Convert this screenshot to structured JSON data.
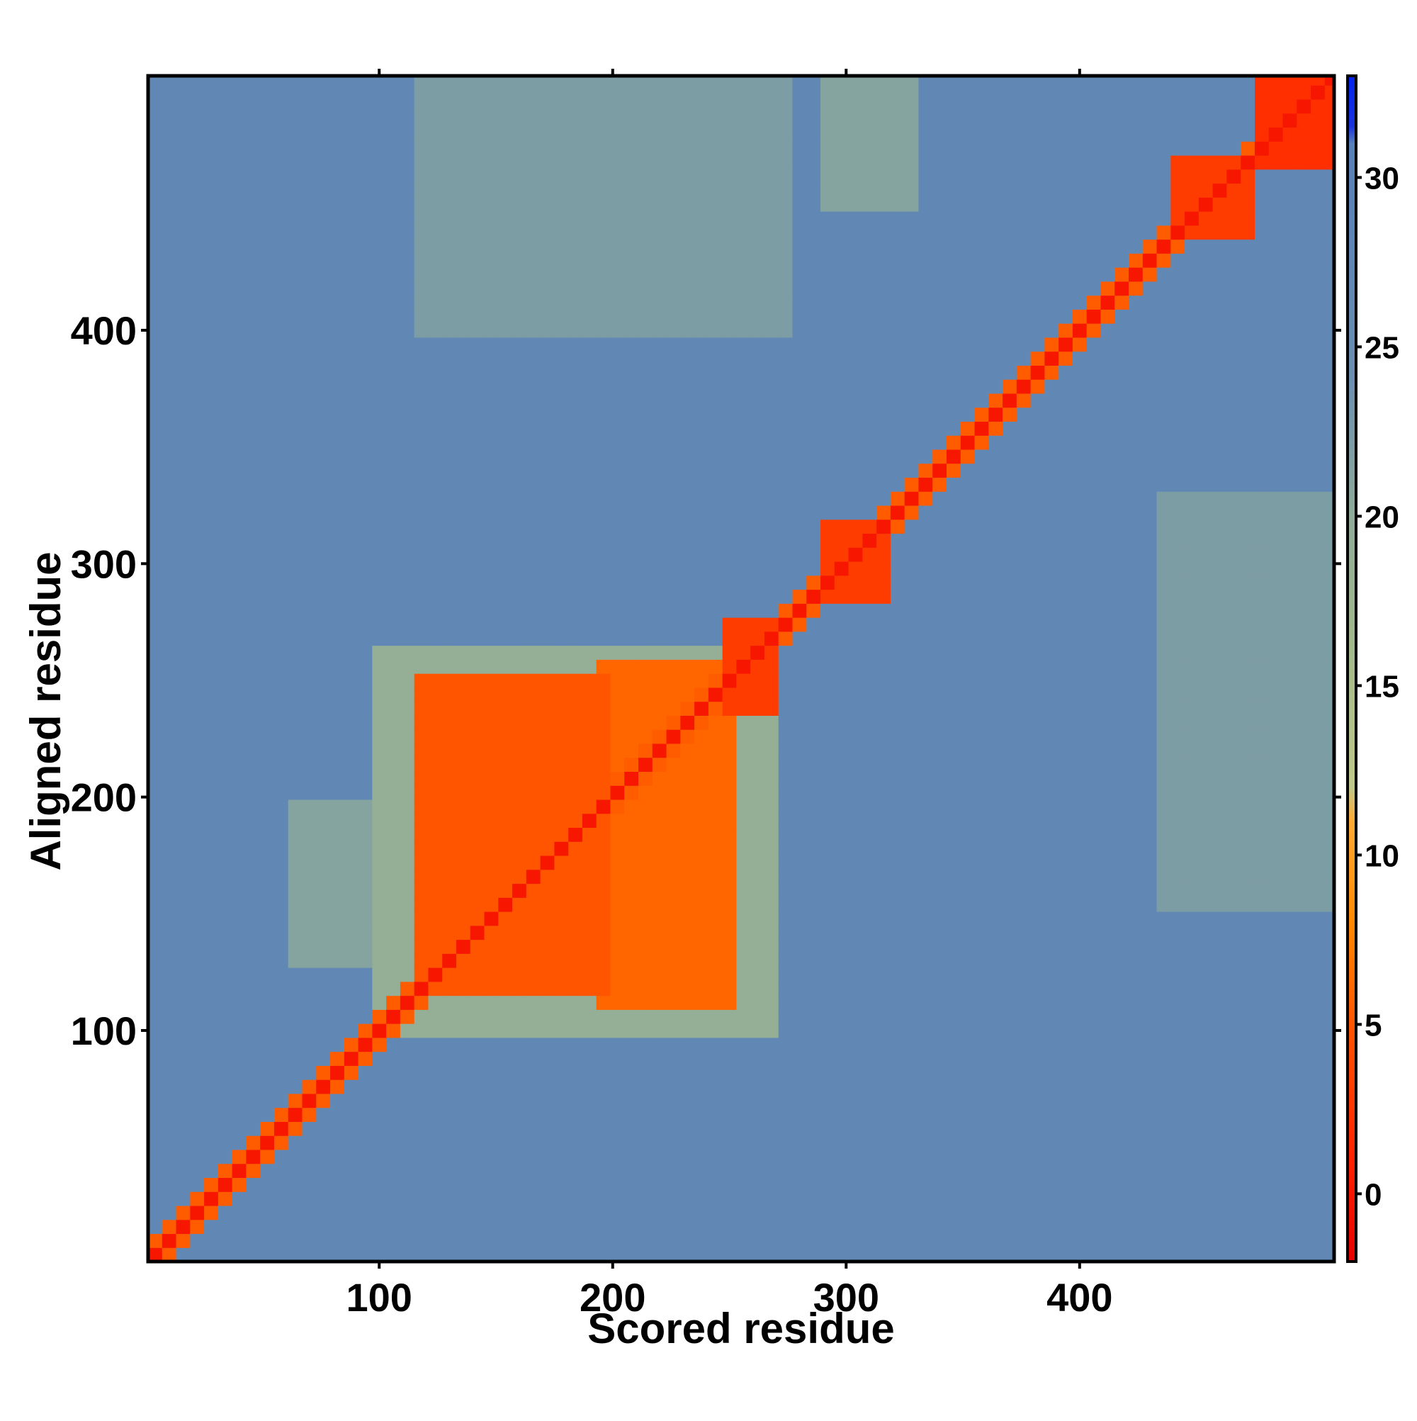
{
  "chart_data": {
    "type": "heatmap",
    "title": "",
    "xlabel": "Scored residue",
    "ylabel": "Aligned residue",
    "xlim": [
      1,
      509
    ],
    "ylim": [
      1,
      509
    ],
    "x_ticks": [
      100,
      200,
      300,
      400
    ],
    "y_ticks": [
      100,
      200,
      300,
      400
    ],
    "colorbar": {
      "range": [
        -2,
        33
      ],
      "ticks": [
        0,
        5,
        10,
        15,
        20,
        25,
        30
      ],
      "color_stops": [
        {
          "value": -2,
          "color": "#e60000"
        },
        {
          "value": 1,
          "color": "#ff2200"
        },
        {
          "value": 5,
          "color": "#ff5500"
        },
        {
          "value": 8,
          "color": "#ff8800"
        },
        {
          "value": 11,
          "color": "#ffaa33"
        },
        {
          "value": 12,
          "color": "#bec88a"
        },
        {
          "value": 16,
          "color": "#a3b98a"
        },
        {
          "value": 20,
          "color": "#8fab99"
        },
        {
          "value": 24,
          "color": "#6b8fb0"
        },
        {
          "value": 29,
          "color": "#5b83b6"
        },
        {
          "value": 31,
          "color": "#5880b8"
        },
        {
          "value": 31.5,
          "color": "#1a33dd"
        },
        {
          "value": 33,
          "color": "#0022ee"
        }
      ]
    },
    "background_value": 27,
    "diagonal_value": 0,
    "domain_blocks": [
      {
        "x": [
          115,
          200
        ],
        "y": [
          115,
          250
        ],
        "value": 5
      },
      {
        "x": [
          195,
          250
        ],
        "y": [
          110,
          260
        ],
        "value": 6
      },
      {
        "x": [
          245,
          272
        ],
        "y": [
          235,
          275
        ],
        "value": 3
      },
      {
        "x": [
          290,
          318
        ],
        "y": [
          285,
          318
        ],
        "value": 3
      },
      {
        "x": [
          437,
          475
        ],
        "y": [
          440,
          477
        ],
        "value": 3
      },
      {
        "x": [
          478,
          509
        ],
        "y": [
          470,
          509
        ],
        "value": 2
      }
    ],
    "moderate_regions": [
      {
        "x": [
          95,
          270
        ],
        "y": [
          95,
          265
        ],
        "value": 19
      },
      {
        "x": [
          115,
          275
        ],
        "y": [
          400,
          509
        ],
        "value": 22
      },
      {
        "x": [
          290,
          330
        ],
        "y": [
          450,
          509
        ],
        "value": 21
      },
      {
        "x": [
          435,
          509
        ],
        "y": [
          150,
          330
        ],
        "value": 22
      },
      {
        "x": [
          60,
          115
        ],
        "y": [
          130,
          200
        ],
        "value": 21
      }
    ]
  }
}
